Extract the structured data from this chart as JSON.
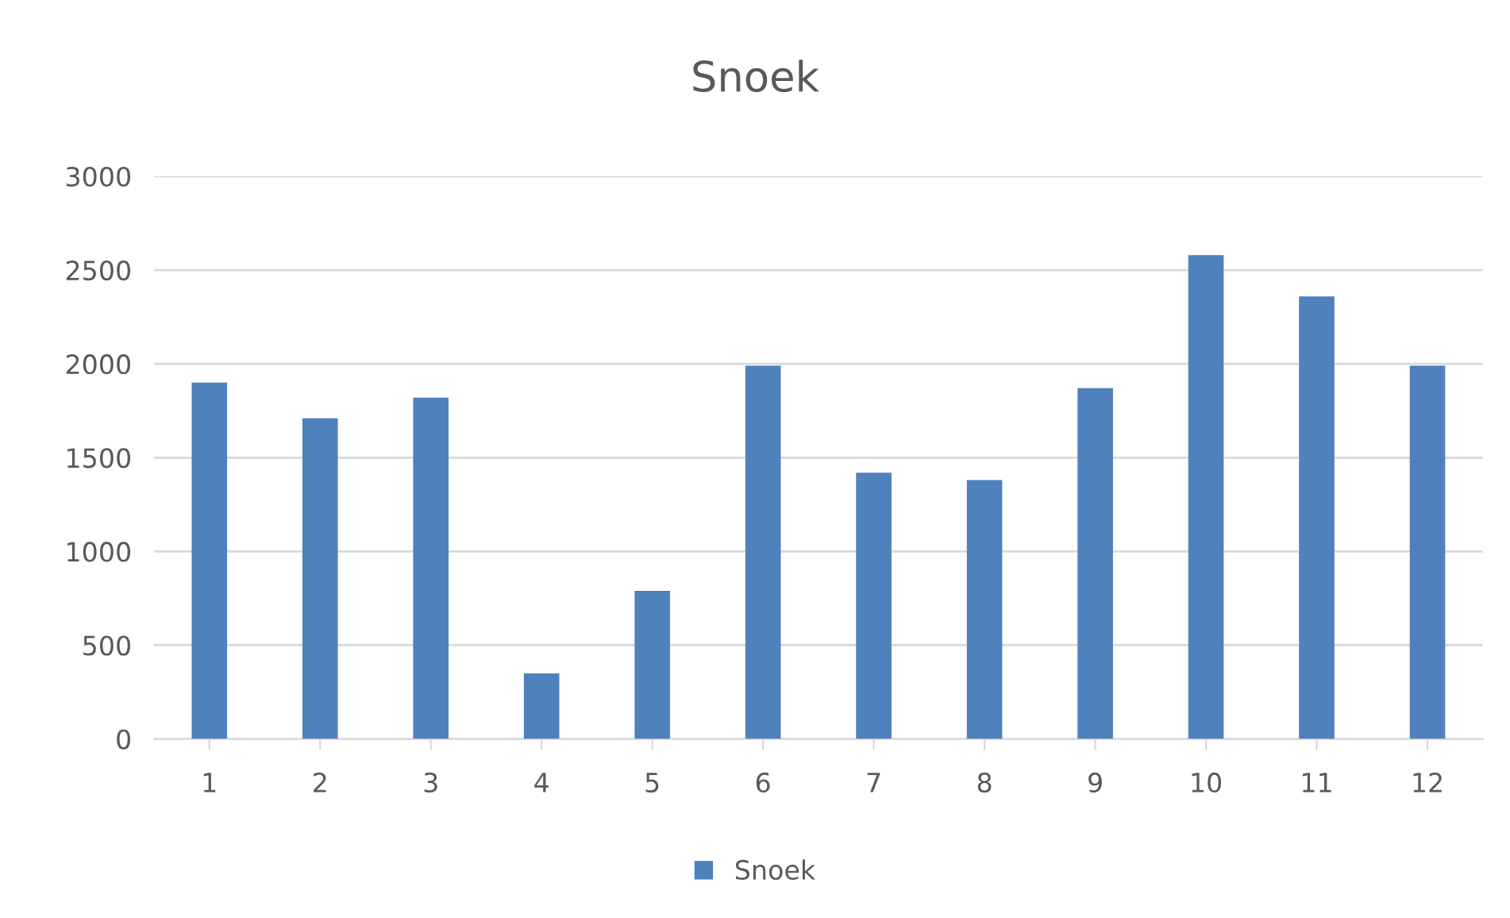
{
  "chart_data": {
    "type": "bar",
    "title": "Snoek",
    "categories": [
      "1",
      "2",
      "3",
      "4",
      "5",
      "6",
      "7",
      "8",
      "9",
      "10",
      "11",
      "12"
    ],
    "series": [
      {
        "name": "Snoek",
        "color": "#4f81bd",
        "values": [
          1900,
          1710,
          1820,
          350,
          790,
          1990,
          1420,
          1380,
          1870,
          2580,
          2360,
          1990
        ]
      }
    ],
    "ylim": [
      0,
      3000
    ],
    "yticks": [
      0,
      500,
      1000,
      1500,
      2000,
      2500,
      3000
    ],
    "grid": "y",
    "legend": "bottom"
  }
}
